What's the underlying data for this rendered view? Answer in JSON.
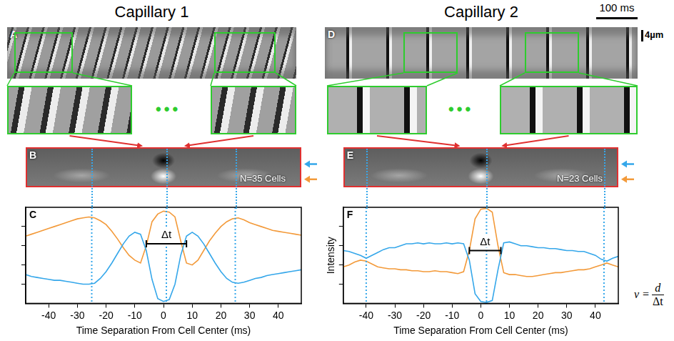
{
  "columns": [
    {
      "title": "Capillary 1",
      "raw_panel": "A",
      "average_panel": "B",
      "average_note": "N=35 Cells"
    },
    {
      "title": "Capillary 2",
      "raw_panel": "D",
      "average_panel": "E",
      "average_note": "N=23 Cells"
    }
  ],
  "header": {
    "time_scale_bar": "100 ms",
    "length_scale_bar": "4µm",
    "ellipsis": "•••"
  },
  "formula": {
    "lhs": "v =",
    "numerator": "d",
    "denominator": "Δt"
  },
  "chart_data": [
    {
      "panel": "C",
      "type": "line",
      "x_label": "Time Separation From Cell Center (ms)",
      "x": [
        -48,
        -46,
        -44,
        -42,
        -40,
        -38,
        -36,
        -34,
        -32,
        -30,
        -28,
        -26,
        -24,
        -22,
        -20,
        -18,
        -16,
        -14,
        -12,
        -10,
        -8,
        -6,
        -4,
        -2,
        0,
        2,
        4,
        6,
        8,
        10,
        12,
        14,
        16,
        18,
        20,
        22,
        24,
        26,
        28,
        30,
        32,
        34,
        36,
        38,
        40,
        42,
        44,
        46,
        48
      ],
      "series": [
        {
          "color": "#35a7ea",
          "values": [
            0.3,
            0.28,
            0.27,
            0.26,
            0.25,
            0.24,
            0.24,
            0.23,
            0.22,
            0.21,
            0.2,
            0.2,
            0.21,
            0.26,
            0.33,
            0.42,
            0.52,
            0.62,
            0.7,
            0.74,
            0.72,
            0.55,
            0.25,
            0.05,
            0.02,
            0.04,
            0.2,
            0.5,
            0.7,
            0.74,
            0.7,
            0.62,
            0.52,
            0.42,
            0.33,
            0.26,
            0.22,
            0.21,
            0.22,
            0.24,
            0.26,
            0.27,
            0.29,
            0.3,
            0.31,
            0.32,
            0.33,
            0.34,
            0.35
          ]
        },
        {
          "color": "#f39a3a",
          "values": [
            0.7,
            0.72,
            0.74,
            0.76,
            0.78,
            0.8,
            0.82,
            0.84,
            0.86,
            0.88,
            0.89,
            0.9,
            0.89,
            0.86,
            0.82,
            0.75,
            0.67,
            0.58,
            0.5,
            0.45,
            0.42,
            0.6,
            0.85,
            0.93,
            0.96,
            0.95,
            0.9,
            0.65,
            0.42,
            0.4,
            0.45,
            0.55,
            0.65,
            0.73,
            0.8,
            0.85,
            0.88,
            0.89,
            0.87,
            0.84,
            0.82,
            0.8,
            0.78,
            0.76,
            0.75,
            0.74,
            0.73,
            0.72,
            0.71
          ]
        }
      ],
      "xlim": [
        -48,
        48
      ],
      "xticks": [
        -40,
        -30,
        -20,
        -10,
        0,
        10,
        20,
        30,
        40
      ],
      "ylim": [
        0,
        1
      ],
      "yticks": [
        0.2,
        0.4,
        0.6,
        0.8
      ],
      "tick_labels": "x",
      "grid": false,
      "vlines": [
        -25,
        1,
        25
      ],
      "bracket": {
        "x": [
          -6,
          8
        ],
        "y": 0.62,
        "label": "Δt"
      }
    },
    {
      "panel": "F",
      "type": "line",
      "x_label": "Time Separation From Cell Center (ms)",
      "y_label": "Intensity",
      "x": [
        -48,
        -46,
        -44,
        -42,
        -40,
        -38,
        -36,
        -34,
        -32,
        -30,
        -28,
        -26,
        -24,
        -22,
        -20,
        -18,
        -16,
        -14,
        -12,
        -10,
        -8,
        -6,
        -4,
        -2,
        0,
        2,
        4,
        6,
        8,
        10,
        12,
        14,
        16,
        18,
        20,
        22,
        24,
        26,
        28,
        30,
        32,
        34,
        36,
        38,
        40,
        42,
        44,
        46,
        48
      ],
      "series": [
        {
          "color": "#35a7ea",
          "values": [
            0.55,
            0.54,
            0.52,
            0.5,
            0.47,
            0.5,
            0.53,
            0.56,
            0.58,
            0.58,
            0.6,
            0.62,
            0.62,
            0.63,
            0.62,
            0.63,
            0.62,
            0.62,
            0.63,
            0.62,
            0.63,
            0.62,
            0.45,
            0.1,
            0.02,
            0.01,
            0.03,
            0.35,
            0.63,
            0.64,
            0.62,
            0.6,
            0.6,
            0.59,
            0.58,
            0.58,
            0.57,
            0.57,
            0.56,
            0.55,
            0.55,
            0.54,
            0.54,
            0.52,
            0.5,
            0.46,
            0.44,
            0.47,
            0.49
          ]
        },
        {
          "color": "#f39a3a",
          "values": [
            0.38,
            0.4,
            0.43,
            0.45,
            0.44,
            0.41,
            0.38,
            0.37,
            0.36,
            0.36,
            0.35,
            0.35,
            0.34,
            0.34,
            0.33,
            0.33,
            0.34,
            0.33,
            0.33,
            0.32,
            0.31,
            0.33,
            0.55,
            0.88,
            0.98,
            0.99,
            0.95,
            0.6,
            0.32,
            0.3,
            0.3,
            0.29,
            0.28,
            0.28,
            0.29,
            0.3,
            0.31,
            0.32,
            0.32,
            0.33,
            0.34,
            0.35,
            0.35,
            0.36,
            0.38,
            0.4,
            0.42,
            0.4,
            0.38
          ]
        }
      ],
      "xlim": [
        -48,
        48
      ],
      "xticks": [
        -40,
        -30,
        -20,
        -10,
        0,
        10,
        20,
        30,
        40
      ],
      "ylim": [
        0,
        1
      ],
      "yticks": [
        0.2,
        0.4,
        0.6,
        0.8
      ],
      "tick_labels": "x",
      "grid": false,
      "vlines": [
        -40,
        2,
        43
      ],
      "bracket": {
        "x": [
          -4,
          7
        ],
        "y": 0.55,
        "label": "Δt"
      }
    }
  ]
}
